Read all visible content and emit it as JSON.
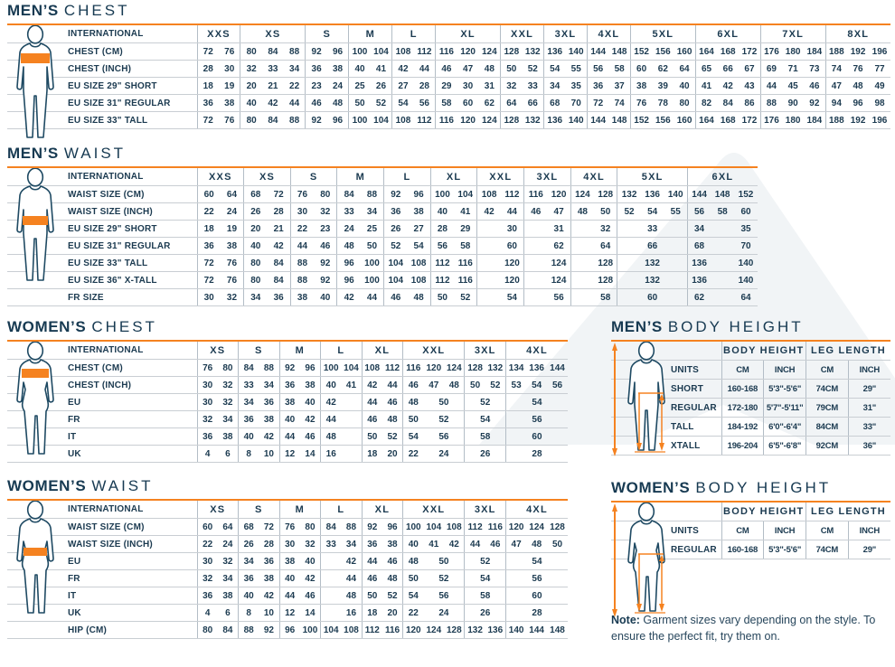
{
  "colors": {
    "navy_text": "#173a52",
    "accent_orange": "#f58220",
    "row_line": "#c9ced3",
    "group_line": "#b3bdc6",
    "watermark_gray": "#f1f4f6"
  },
  "note": {
    "bold": "Note:",
    "text": " Garment sizes vary depending on the style. To ensure the perfect fit, try them on."
  },
  "tables": {
    "mens_chest": {
      "title_bold": "MEN’S",
      "title_light": "CHEST",
      "label_header": "INTERNATIONAL",
      "label_width": 210,
      "groups": [
        {
          "label": "XXS",
          "cols": 2
        },
        {
          "label": "XS",
          "cols": 3
        },
        {
          "label": "S",
          "cols": 2
        },
        {
          "label": "M",
          "cols": 2
        },
        {
          "label": "L",
          "cols": 2
        },
        {
          "label": "XL",
          "cols": 3
        },
        {
          "label": "XXL",
          "cols": 2
        },
        {
          "label": "3XL",
          "cols": 2
        },
        {
          "label": "4XL",
          "cols": 2
        },
        {
          "label": "5XL",
          "cols": 3
        },
        {
          "label": "6XL",
          "cols": 3
        },
        {
          "label": "7XL",
          "cols": 3
        },
        {
          "label": "8XL",
          "cols": 3
        }
      ],
      "rows": [
        {
          "label": "CHEST (CM)",
          "cells": [
            "72",
            "76",
            "80",
            "84",
            "88",
            "92",
            "96",
            "100",
            "104",
            "108",
            "112",
            "116",
            "120",
            "124",
            "128",
            "132",
            "136",
            "140",
            "144",
            "148",
            "152",
            "156",
            "160",
            "164",
            "168",
            "172",
            "176",
            "180",
            "184",
            "188",
            "192",
            "196"
          ]
        },
        {
          "label": "CHEST (INCH)",
          "cells": [
            "28",
            "30",
            "32",
            "33",
            "34",
            "36",
            "38",
            "40",
            "41",
            "42",
            "44",
            "46",
            "47",
            "48",
            "50",
            "52",
            "54",
            "55",
            "56",
            "58",
            "60",
            "62",
            "64",
            "65",
            "66",
            "67",
            "69",
            "71",
            "73",
            "74",
            "76",
            "77"
          ]
        },
        {
          "label": "EU SIZE 29\" SHORT",
          "cells": [
            "18",
            "19",
            "20",
            "21",
            "22",
            "23",
            "24",
            "25",
            "26",
            "27",
            "28",
            "29",
            "30",
            "31",
            "32",
            "33",
            "34",
            "35",
            "36",
            "37",
            "38",
            "39",
            "40",
            "41",
            "42",
            "43",
            "44",
            "45",
            "46",
            "47",
            "48",
            "49"
          ]
        },
        {
          "label": "EU SIZE 31\" REGULAR",
          "cells": [
            "36",
            "38",
            "40",
            "42",
            "44",
            "46",
            "48",
            "50",
            "52",
            "54",
            "56",
            "58",
            "60",
            "62",
            "64",
            "66",
            "68",
            "70",
            "72",
            "74",
            "76",
            "78",
            "80",
            "82",
            "84",
            "86",
            "88",
            "90",
            "92",
            "94",
            "96",
            "98"
          ]
        },
        {
          "label": "EU SIZE 33\" TALL",
          "cells": [
            "72",
            "76",
            "80",
            "84",
            "88",
            "92",
            "96",
            "100",
            "104",
            "108",
            "112",
            "116",
            "120",
            "124",
            "128",
            "132",
            "136",
            "140",
            "144",
            "148",
            "152",
            "156",
            "160",
            "164",
            "168",
            "172",
            "176",
            "180",
            "184",
            "188",
            "192",
            "196"
          ]
        }
      ]
    },
    "mens_waist": {
      "title_bold": "MEN’S",
      "title_light": "WAIST",
      "label_header": "INTERNATIONAL",
      "label_width": 210,
      "groups": [
        {
          "label": "XXS",
          "cols": 2
        },
        {
          "label": "XS",
          "cols": 2
        },
        {
          "label": "S",
          "cols": 2
        },
        {
          "label": "M",
          "cols": 2
        },
        {
          "label": "L",
          "cols": 2
        },
        {
          "label": "XL",
          "cols": 2
        },
        {
          "label": "XXL",
          "cols": 2
        },
        {
          "label": "3XL",
          "cols": 2
        },
        {
          "label": "4XL",
          "cols": 2
        },
        {
          "label": "5XL",
          "cols": 3
        },
        {
          "label": "6XL",
          "cols": 3
        }
      ],
      "rows": [
        {
          "label": "WAIST SIZE (CM)",
          "cells": [
            "60",
            "64",
            "68",
            "72",
            "76",
            "80",
            "84",
            "88",
            "92",
            "96",
            "100",
            "104",
            "108",
            "112",
            "116",
            "120",
            "124",
            "128",
            "132",
            "136",
            "140",
            "144",
            "148",
            "152"
          ]
        },
        {
          "label": "WAIST SIZE (INCH)",
          "cells": [
            "22",
            "24",
            "26",
            "28",
            "30",
            "32",
            "33",
            "34",
            "36",
            "38",
            "40",
            "41",
            "42",
            "44",
            "46",
            "47",
            "48",
            "50",
            "52",
            "54",
            "55",
            "56",
            "58",
            "60"
          ]
        },
        {
          "label": "EU SIZE 29\" SHORT",
          "cells": [
            "18",
            "19",
            "20",
            "21",
            "22",
            "23",
            "24",
            "25",
            "26",
            "27",
            "28",
            "29",
            "",
            "30",
            "",
            "31",
            "",
            "32",
            {
              "v": "33",
              "s": 3
            },
            "34",
            "",
            "35"
          ]
        },
        {
          "label": "EU SIZE 31\" REGULAR",
          "cells": [
            "36",
            "38",
            "40",
            "42",
            "44",
            "46",
            "48",
            "50",
            "52",
            "54",
            "56",
            "58",
            "",
            "60",
            "",
            "62",
            "",
            "64",
            {
              "v": "66",
              "s": 3
            },
            "68",
            "",
            "70"
          ]
        },
        {
          "label": "EU SIZE 33\" TALL",
          "cells": [
            "72",
            "76",
            "80",
            "84",
            "88",
            "92",
            "96",
            "100",
            "104",
            "108",
            "112",
            "116",
            "",
            "120",
            "",
            "124",
            "",
            "128",
            {
              "v": "132",
              "s": 3
            },
            "136",
            "",
            "140"
          ]
        },
        {
          "label": "EU SIZE 36\" X-TALL",
          "cells": [
            "72",
            "76",
            "80",
            "84",
            "88",
            "92",
            "96",
            "100",
            "104",
            "108",
            "112",
            "116",
            "",
            "120",
            "",
            "124",
            "",
            "128",
            {
              "v": "132",
              "s": 3
            },
            "136",
            "",
            "140"
          ]
        },
        {
          "label": "FR SIZE",
          "cells": [
            "30",
            "32",
            "34",
            "36",
            "38",
            "40",
            "42",
            "44",
            "46",
            "48",
            "50",
            "52",
            "",
            "54",
            "",
            "56",
            "",
            "58",
            {
              "v": "60",
              "s": 3
            },
            "62",
            "",
            "64"
          ]
        }
      ]
    },
    "womens_chest": {
      "title_bold": "WOMEN’S",
      "title_light": "CHEST",
      "label_header": "INTERNATIONAL",
      "label_width": 210,
      "groups": [
        {
          "label": "XS",
          "cols": 2
        },
        {
          "label": "S",
          "cols": 2
        },
        {
          "label": "M",
          "cols": 2
        },
        {
          "label": "L",
          "cols": 2
        },
        {
          "label": "XL",
          "cols": 2
        },
        {
          "label": "XXL",
          "cols": 3
        },
        {
          "label": "3XL",
          "cols": 2
        },
        {
          "label": "4XL",
          "cols": 3
        }
      ],
      "rows": [
        {
          "label": "CHEST (CM)",
          "cells": [
            "76",
            "80",
            "84",
            "88",
            "92",
            "96",
            "100",
            "104",
            "108",
            "112",
            "116",
            "120",
            "124",
            "128",
            "132",
            "134",
            "136",
            "144"
          ]
        },
        {
          "label": "CHEST (INCH)",
          "cells": [
            "30",
            "32",
            "33",
            "34",
            "36",
            "38",
            "40",
            "41",
            "42",
            "44",
            "46",
            "47",
            "48",
            "50",
            "52",
            "53",
            "54",
            "56"
          ]
        },
        {
          "label": "EU",
          "cells": [
            "30",
            "32",
            "34",
            "36",
            "38",
            "40",
            "42",
            "",
            "44",
            "46",
            "48",
            {
              "v": "50",
              "s": 2
            },
            {
              "v": "52",
              "s": 2
            },
            {
              "v": "54",
              "s": 3
            }
          ]
        },
        {
          "label": "FR",
          "cells": [
            "32",
            "34",
            "36",
            "38",
            "40",
            "42",
            "44",
            "",
            "46",
            "48",
            "50",
            {
              "v": "52",
              "s": 2
            },
            {
              "v": "54",
              "s": 2
            },
            {
              "v": "56",
              "s": 3
            }
          ]
        },
        {
          "label": "IT",
          "cells": [
            "36",
            "38",
            "40",
            "42",
            "44",
            "46",
            "48",
            "",
            "50",
            "52",
            "54",
            {
              "v": "56",
              "s": 2
            },
            {
              "v": "58",
              "s": 2
            },
            {
              "v": "60",
              "s": 3
            }
          ]
        },
        {
          "label": "UK",
          "cells": [
            "4",
            "6",
            "8",
            "10",
            "12",
            "14",
            "16",
            "",
            "18",
            "20",
            "22",
            {
              "v": "24",
              "s": 2
            },
            {
              "v": "26",
              "s": 2
            },
            {
              "v": "28",
              "s": 3
            }
          ]
        }
      ]
    },
    "womens_waist": {
      "title_bold": "WOMEN’S",
      "title_light": "WAIST",
      "label_header": "INTERNATIONAL",
      "label_width": 210,
      "groups": [
        {
          "label": "XS",
          "cols": 2
        },
        {
          "label": "S",
          "cols": 2
        },
        {
          "label": "M",
          "cols": 2
        },
        {
          "label": "L",
          "cols": 2
        },
        {
          "label": "XL",
          "cols": 2
        },
        {
          "label": "XXL",
          "cols": 3
        },
        {
          "label": "3XL",
          "cols": 2
        },
        {
          "label": "4XL",
          "cols": 3
        }
      ],
      "rows": [
        {
          "label": "WAIST SIZE (CM)",
          "cells": [
            "60",
            "64",
            "68",
            "72",
            "76",
            "80",
            "84",
            "88",
            "92",
            "96",
            "100",
            "104",
            "108",
            "112",
            "116",
            "120",
            "124",
            "128"
          ]
        },
        {
          "label": "WAIST SIZE (INCH)",
          "cells": [
            "22",
            "24",
            "26",
            "28",
            "30",
            "32",
            "33",
            "34",
            "36",
            "38",
            "40",
            "41",
            "42",
            "44",
            "46",
            "47",
            "48",
            "50"
          ]
        },
        {
          "label": "EU",
          "cells": [
            "30",
            "32",
            "34",
            "36",
            "38",
            "40",
            "",
            "42",
            "44",
            "46",
            "48",
            {
              "v": "50",
              "s": 2
            },
            {
              "v": "52",
              "s": 2
            },
            {
              "v": "54",
              "s": 3
            }
          ]
        },
        {
          "label": "FR",
          "cells": [
            "32",
            "34",
            "36",
            "38",
            "40",
            "42",
            "",
            "44",
            "46",
            "48",
            "50",
            {
              "v": "52",
              "s": 2
            },
            {
              "v": "54",
              "s": 2
            },
            {
              "v": "56",
              "s": 3
            }
          ]
        },
        {
          "label": "IT",
          "cells": [
            "36",
            "38",
            "40",
            "42",
            "44",
            "46",
            "",
            "48",
            "50",
            "52",
            "54",
            {
              "v": "56",
              "s": 2
            },
            {
              "v": "58",
              "s": 2
            },
            {
              "v": "60",
              "s": 3
            }
          ]
        },
        {
          "label": "UK",
          "cells": [
            "4",
            "6",
            "8",
            "10",
            "12",
            "14",
            "",
            "16",
            "18",
            "20",
            "22",
            {
              "v": "24",
              "s": 2
            },
            {
              "v": "26",
              "s": 2
            },
            {
              "v": "28",
              "s": 3
            }
          ]
        },
        {
          "label": "HIP (CM)",
          "cells": [
            "80",
            "84",
            "88",
            "92",
            "96",
            "100",
            "104",
            "108",
            "112",
            "116",
            "120",
            "124",
            "128",
            "132",
            "136",
            "140",
            "144",
            "148"
          ]
        }
      ]
    },
    "mens_body_height": {
      "title_bold": "MEN’S",
      "title_light": "BODY HEIGHT",
      "label_header": "",
      "label_width": 122,
      "variant": "bh",
      "groups": [
        {
          "label": "BODY HEIGHT",
          "cols": 2
        },
        {
          "label": "LEG LENGTH",
          "cols": 2
        }
      ],
      "rows": [
        {
          "label": "UNITS",
          "cells": [
            "CM",
            "INCH",
            "CM",
            "INCH"
          ],
          "hdr": true
        },
        {
          "label": "SHORT",
          "cells": [
            "160-168",
            "5'3\"-5'6\"",
            "74CM",
            "29\""
          ]
        },
        {
          "label": "REGULAR",
          "cells": [
            "172-180",
            "5'7\"-5'11\"",
            "79CM",
            "31\""
          ]
        },
        {
          "label": "TALL",
          "cells": [
            "184-192",
            "6'0\"-6'4\"",
            "84CM",
            "33\""
          ]
        },
        {
          "label": "XTALL",
          "cells": [
            "196-204",
            "6'5\"-6'8\"",
            "92CM",
            "36\""
          ]
        }
      ]
    },
    "womens_body_height": {
      "title_bold": "WOMEN’S",
      "title_light": "BODY HEIGHT",
      "label_header": "",
      "label_width": 122,
      "variant": "bh",
      "groups": [
        {
          "label": "BODY HEIGHT",
          "cols": 2
        },
        {
          "label": "LEG LENGTH",
          "cols": 2
        }
      ],
      "rows": [
        {
          "label": "UNITS",
          "cells": [
            "CM",
            "INCH",
            "CM",
            "INCH"
          ],
          "hdr": true
        },
        {
          "label": "REGULAR",
          "cells": [
            "160-168",
            "5'3\"-5'6\"",
            "74CM",
            "29\""
          ]
        }
      ]
    }
  }
}
